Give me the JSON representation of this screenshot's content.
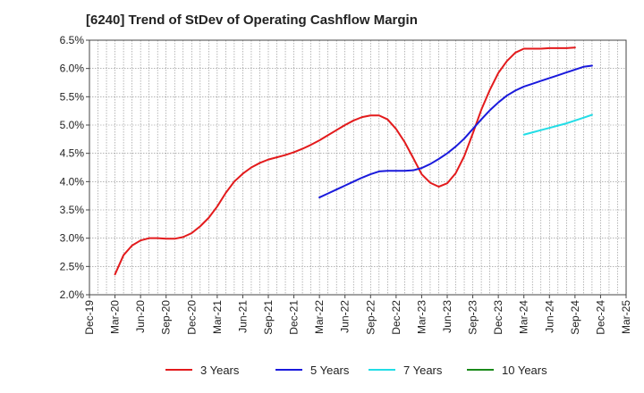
{
  "chart_data": {
    "type": "line",
    "title": "[6240]  Trend of StDev of Operating Cashflow Margin",
    "xlabel": "",
    "ylabel": "",
    "x_ticks": [
      "Dec-19",
      "Mar-20",
      "Jun-20",
      "Sep-20",
      "Dec-20",
      "Mar-21",
      "Jun-21",
      "Sep-21",
      "Dec-21",
      "Mar-22",
      "Jun-22",
      "Sep-22",
      "Dec-22",
      "Mar-23",
      "Jun-23",
      "Sep-23",
      "Dec-23",
      "Mar-24",
      "Jun-24",
      "Sep-24",
      "Dec-24",
      "Mar-25"
    ],
    "y_ticks": [
      "2.0%",
      "2.5%",
      "3.0%",
      "3.5%",
      "4.0%",
      "4.5%",
      "5.0%",
      "5.5%",
      "6.0%",
      "6.5%"
    ],
    "ylim": [
      2.0,
      6.5
    ],
    "y_unit": "%",
    "grid": true,
    "legend_position": "bottom",
    "series": [
      {
        "name": "3 Years",
        "color": "#e31a1c",
        "points": [
          [
            "Mar-20",
            2.36
          ],
          [
            "Apr-20",
            2.7
          ],
          [
            "May-20",
            2.87
          ],
          [
            "Jun-20",
            2.96
          ],
          [
            "Jul-20",
            3.0
          ],
          [
            "Aug-20",
            3.0
          ],
          [
            "Sep-20",
            2.99
          ],
          [
            "Oct-20",
            2.99
          ],
          [
            "Nov-20",
            3.02
          ],
          [
            "Dec-20",
            3.09
          ],
          [
            "Jan-21",
            3.21
          ],
          [
            "Feb-21",
            3.36
          ],
          [
            "Mar-21",
            3.56
          ],
          [
            "Apr-21",
            3.8
          ],
          [
            "May-21",
            4.0
          ],
          [
            "Jun-21",
            4.14
          ],
          [
            "Jul-21",
            4.25
          ],
          [
            "Aug-21",
            4.33
          ],
          [
            "Sep-21",
            4.39
          ],
          [
            "Oct-21",
            4.43
          ],
          [
            "Nov-21",
            4.47
          ],
          [
            "Dec-21",
            4.52
          ],
          [
            "Jan-22",
            4.58
          ],
          [
            "Feb-22",
            4.65
          ],
          [
            "Mar-22",
            4.73
          ],
          [
            "Apr-22",
            4.82
          ],
          [
            "May-22",
            4.91
          ],
          [
            "Jun-22",
            5.0
          ],
          [
            "Jul-22",
            5.08
          ],
          [
            "Aug-22",
            5.14
          ],
          [
            "Sep-22",
            5.17
          ],
          [
            "Oct-22",
            5.17
          ],
          [
            "Nov-22",
            5.1
          ],
          [
            "Dec-22",
            4.93
          ],
          [
            "Jan-23",
            4.7
          ],
          [
            "Feb-23",
            4.42
          ],
          [
            "Mar-23",
            4.13
          ],
          [
            "Apr-23",
            3.98
          ],
          [
            "May-23",
            3.91
          ],
          [
            "Jun-23",
            3.97
          ],
          [
            "Jul-23",
            4.15
          ],
          [
            "Aug-23",
            4.45
          ],
          [
            "Sep-23",
            4.85
          ],
          [
            "Oct-23",
            5.27
          ],
          [
            "Nov-23",
            5.62
          ],
          [
            "Dec-23",
            5.92
          ],
          [
            "Jan-24",
            6.13
          ],
          [
            "Feb-24",
            6.28
          ],
          [
            "Mar-24",
            6.35
          ],
          [
            "Apr-24",
            6.35
          ],
          [
            "May-24",
            6.35
          ],
          [
            "Jun-24",
            6.36
          ],
          [
            "Jul-24",
            6.36
          ],
          [
            "Aug-24",
            6.36
          ],
          [
            "Sep-24",
            6.37
          ]
        ]
      },
      {
        "name": "5 Years",
        "color": "#1a1adc",
        "points": [
          [
            "Mar-22",
            3.72
          ],
          [
            "Apr-22",
            3.79
          ],
          [
            "May-22",
            3.86
          ],
          [
            "Jun-22",
            3.93
          ],
          [
            "Jul-22",
            4.0
          ],
          [
            "Aug-22",
            4.07
          ],
          [
            "Sep-22",
            4.13
          ],
          [
            "Oct-22",
            4.18
          ],
          [
            "Nov-22",
            4.19
          ],
          [
            "Dec-22",
            4.19
          ],
          [
            "Jan-23",
            4.19
          ],
          [
            "Feb-23",
            4.2
          ],
          [
            "Mar-23",
            4.24
          ],
          [
            "Apr-23",
            4.31
          ],
          [
            "May-23",
            4.4
          ],
          [
            "Jun-23",
            4.5
          ],
          [
            "Jul-23",
            4.62
          ],
          [
            "Aug-23",
            4.76
          ],
          [
            "Sep-23",
            4.93
          ],
          [
            "Oct-23",
            5.1
          ],
          [
            "Nov-23",
            5.26
          ],
          [
            "Dec-23",
            5.4
          ],
          [
            "Jan-24",
            5.52
          ],
          [
            "Feb-24",
            5.61
          ],
          [
            "Mar-24",
            5.68
          ],
          [
            "Apr-24",
            5.73
          ],
          [
            "May-24",
            5.78
          ],
          [
            "Jun-24",
            5.83
          ],
          [
            "Jul-24",
            5.88
          ],
          [
            "Aug-24",
            5.93
          ],
          [
            "Sep-24",
            5.98
          ],
          [
            "Oct-24",
            6.03
          ],
          [
            "Nov-24",
            6.05
          ]
        ]
      },
      {
        "name": "7 Years",
        "color": "#22dde6",
        "points": [
          [
            "Mar-24",
            4.83
          ],
          [
            "Apr-24",
            4.87
          ],
          [
            "May-24",
            4.91
          ],
          [
            "Jun-24",
            4.95
          ],
          [
            "Jul-24",
            4.99
          ],
          [
            "Aug-24",
            5.03
          ],
          [
            "Sep-24",
            5.08
          ],
          [
            "Oct-24",
            5.13
          ],
          [
            "Nov-24",
            5.18
          ]
        ]
      },
      {
        "name": "10 Years",
        "color": "#1a8a1a",
        "points": []
      }
    ]
  }
}
